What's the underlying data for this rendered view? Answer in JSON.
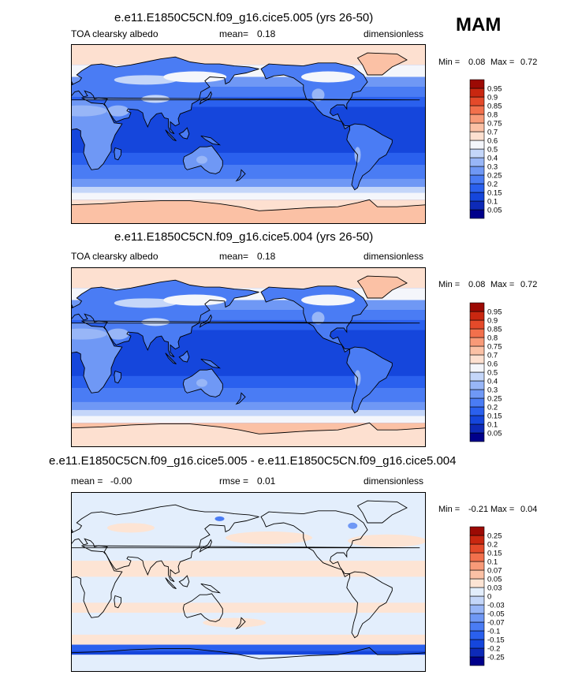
{
  "season": "MAM",
  "chart_data": [
    {
      "type": "heatmap",
      "title": "e.e11.E1850C5CN.f09_g16.cice5.005 (yrs 26-50)",
      "left_label": "TOA clearsky albedo",
      "mean_label": "mean=",
      "mean_value": "0.18",
      "units": "dimensionless",
      "min_label": "Min =",
      "min_value": "0.08",
      "max_label": "Max =",
      "max_value": "0.72",
      "levels": [
        "0.05",
        "0.1",
        "0.15",
        "0.2",
        "0.25",
        "0.3",
        "0.4",
        "0.5",
        "0.6",
        "0.7",
        "0.75",
        "0.8",
        "0.85",
        "0.9",
        "0.95"
      ],
      "colors": [
        "#00008b",
        "#0d2ab8",
        "#1546dc",
        "#2a60ee",
        "#4a7cf4",
        "#6f98f5",
        "#98b6f7",
        "#c4d6f9",
        "#f4f6fb",
        "#fde0d0",
        "#fbc1a5",
        "#f89a78",
        "#f2704c",
        "#e44a2a",
        "#c92710",
        "#9c0a04"
      ]
    },
    {
      "type": "heatmap",
      "title": "e.e11.E1850C5CN.f09_g16.cice5.004 (yrs 26-50)",
      "left_label": "TOA clearsky albedo",
      "mean_label": "mean=",
      "mean_value": "0.18",
      "units": "dimensionless",
      "min_label": "Min =",
      "min_value": "0.08",
      "max_label": "Max =",
      "max_value": "0.72",
      "levels": [
        "0.05",
        "0.1",
        "0.15",
        "0.2",
        "0.25",
        "0.3",
        "0.4",
        "0.5",
        "0.6",
        "0.7",
        "0.75",
        "0.8",
        "0.85",
        "0.9",
        "0.95"
      ],
      "colors": [
        "#00008b",
        "#0d2ab8",
        "#1546dc",
        "#2a60ee",
        "#4a7cf4",
        "#6f98f5",
        "#98b6f7",
        "#c4d6f9",
        "#f4f6fb",
        "#fde0d0",
        "#fbc1a5",
        "#f89a78",
        "#f2704c",
        "#e44a2a",
        "#c92710",
        "#9c0a04"
      ]
    },
    {
      "type": "heatmap",
      "title": "e.e11.E1850C5CN.f09_g16.cice5.005 - e.e11.E1850C5CN.f09_g16.cice5.004",
      "left_label": "mean =",
      "left_value": "-0.00",
      "mean_label": "rmse =",
      "mean_value": "0.01",
      "units": "dimensionless",
      "min_label": "Min =",
      "min_value": "-0.21",
      "max_label": "Max =",
      "max_value": "0.04",
      "levels": [
        "-0.25",
        "-0.2",
        "-0.15",
        "-0.1",
        "-0.07",
        "-0.05",
        "-0.03",
        "0",
        "0.03",
        "0.05",
        "0.07",
        "0.1",
        "0.15",
        "0.2",
        "0.25"
      ],
      "colors": [
        "#00008b",
        "#0d2ab8",
        "#1546dc",
        "#2a60ee",
        "#4a7cf4",
        "#6f98f5",
        "#98b6f7",
        "#c4d6f9",
        "#e3eefc",
        "#fde4d4",
        "#fbc1a5",
        "#f89a78",
        "#f2704c",
        "#e44a2a",
        "#c92710",
        "#9c0a04"
      ]
    }
  ]
}
